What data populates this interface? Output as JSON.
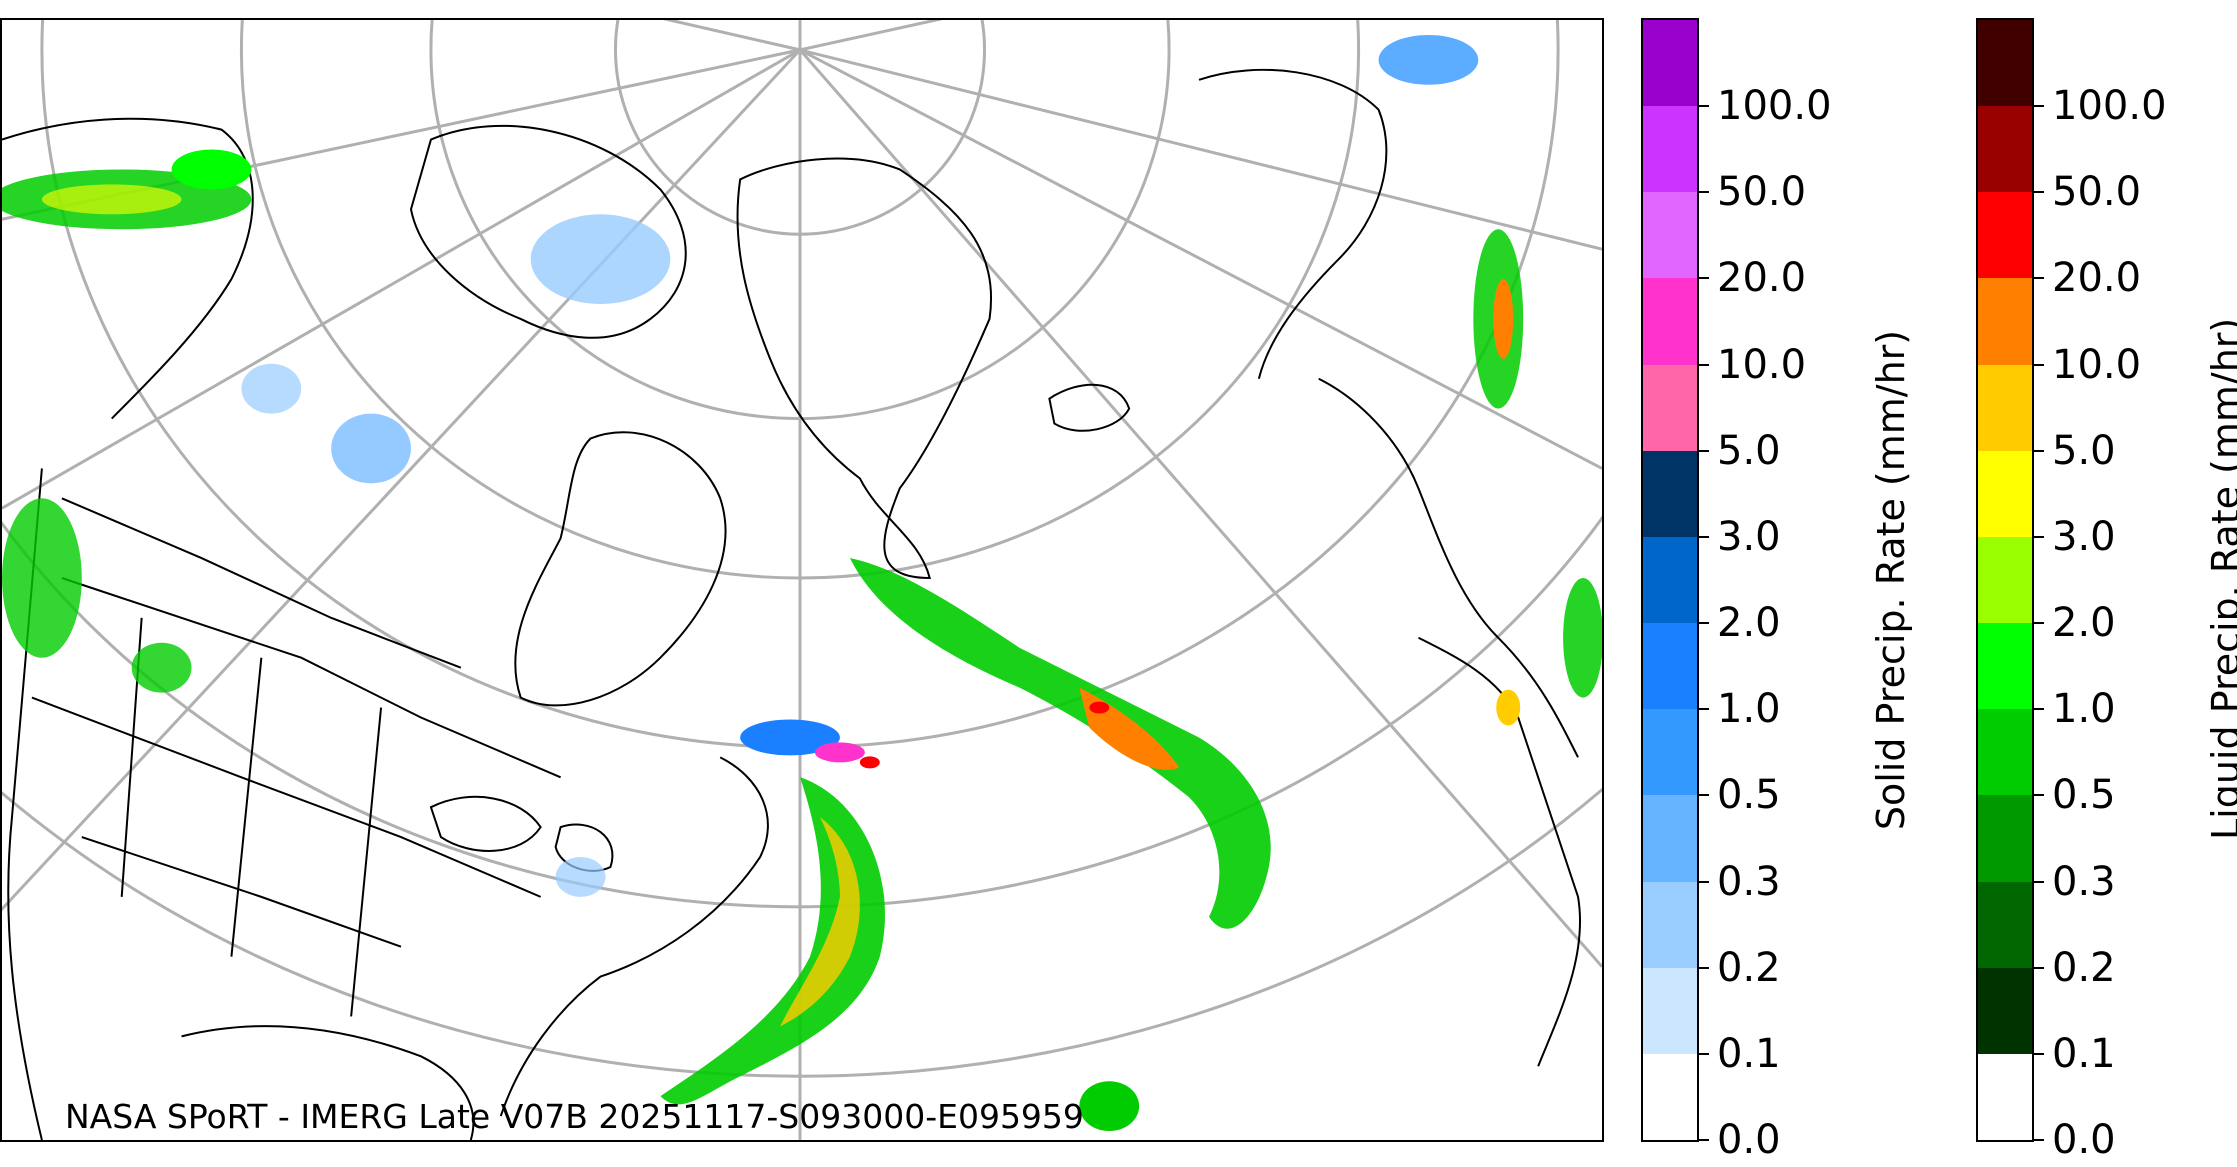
{
  "caption": "NASA SPoRT - IMERG Late V07B 20251117-S093000-E095959",
  "solid_colorbar": {
    "title": "Solid Precip. Rate (mm/hr)",
    "ticks": [
      "0.0",
      "0.1",
      "0.2",
      "0.3",
      "0.5",
      "1.0",
      "2.0",
      "3.0",
      "5.0",
      "10.0",
      "20.0",
      "50.0",
      "100.0"
    ],
    "colors": [
      "#ffffff",
      "#cce6ff",
      "#99ccff",
      "#66b3ff",
      "#3399ff",
      "#1a80ff",
      "#0066cc",
      "#003366",
      "#ff66aa",
      "#ff33cc",
      "#e066ff",
      "#cc33ff",
      "#9900cc"
    ]
  },
  "liquid_colorbar": {
    "title": "Liquid Precip. Rate (mm/hr)",
    "ticks": [
      "0.0",
      "0.1",
      "0.2",
      "0.3",
      "0.5",
      "1.0",
      "2.0",
      "3.0",
      "5.0",
      "10.0",
      "20.0",
      "50.0",
      "100.0"
    ],
    "colors": [
      "#ffffff",
      "#003300",
      "#006600",
      "#009900",
      "#00cc00",
      "#00ff00",
      "#99ff00",
      "#ffff00",
      "#ffcc00",
      "#ff8000",
      "#ff0000",
      "#990000",
      "#400000"
    ]
  }
}
